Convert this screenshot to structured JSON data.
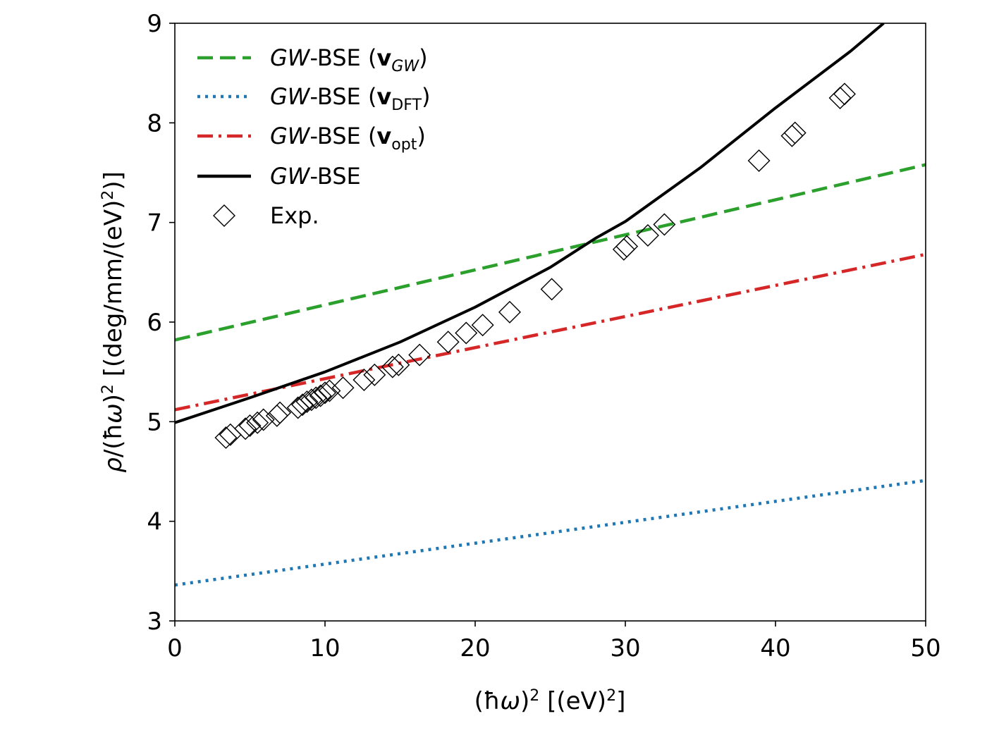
{
  "chart_data": {
    "type": "line",
    "xlabel": "(ħω)² [(eV)²]",
    "ylabel": "ρ/(ħω)² [(deg/mm/(eV)²)]",
    "xlim": [
      0,
      50
    ],
    "ylim": [
      3,
      9
    ],
    "xticks": [
      "0",
      "10",
      "20",
      "30",
      "40",
      "50"
    ],
    "yticks": [
      "3",
      "4",
      "5",
      "6",
      "7",
      "8",
      "9"
    ],
    "grid": false,
    "legend_position": "top-left",
    "series": [
      {
        "name": "GW-BSE (vGW)",
        "style": "dashed",
        "color": "#2ca02c",
        "x": [
          0,
          50
        ],
        "y": [
          5.82,
          7.58
        ]
      },
      {
        "name": "GW-BSE (vDFT)",
        "style": "dotted",
        "color": "#1f77b4",
        "x": [
          0,
          50
        ],
        "y": [
          3.36,
          4.41
        ]
      },
      {
        "name": "GW-BSE (vopt)",
        "style": "dashdot",
        "color": "#d62728",
        "x": [
          0,
          50
        ],
        "y": [
          5.12,
          6.68
        ]
      },
      {
        "name": "GW-BSE",
        "style": "solid",
        "color": "#000000",
        "x": [
          0,
          5,
          10,
          15,
          20,
          25,
          28,
          30,
          35,
          40,
          45,
          47.2
        ],
        "y": [
          4.99,
          5.24,
          5.5,
          5.8,
          6.15,
          6.55,
          6.84,
          7.01,
          7.55,
          8.15,
          8.72,
          9.0
        ]
      },
      {
        "name": "Exp.",
        "style": "marker",
        "color": "#000000",
        "x": [
          3.4,
          3.7,
          4.7,
          5.0,
          5.5,
          5.9,
          6.8,
          7.0,
          8.2,
          8.5,
          8.8,
          9.1,
          9.4,
          9.7,
          10.0,
          10.3,
          11.2,
          12.6,
          13.3,
          14.5,
          14.9,
          16.3,
          18.2,
          19.4,
          20.5,
          22.3,
          25.1,
          29.9,
          30.1,
          31.5,
          32.6,
          38.9,
          41.1,
          41.3,
          44.3,
          44.6
        ],
        "y": [
          4.84,
          4.87,
          4.93,
          4.96,
          4.99,
          5.02,
          5.06,
          5.09,
          5.14,
          5.17,
          5.2,
          5.22,
          5.24,
          5.26,
          5.29,
          5.31,
          5.34,
          5.42,
          5.47,
          5.55,
          5.57,
          5.67,
          5.8,
          5.89,
          5.97,
          6.1,
          6.33,
          6.73,
          6.76,
          6.87,
          6.98,
          7.62,
          7.87,
          7.9,
          8.25,
          8.29
        ]
      }
    ],
    "legend": [
      {
        "pre": "GW",
        "mid": "-BSE (",
        "v": "v",
        "sub": "GW",
        "sub_italic": true,
        "post": ")"
      },
      {
        "pre": "GW",
        "mid": "-BSE (",
        "v": "v",
        "sub": "DFT",
        "sub_italic": false,
        "post": ")"
      },
      {
        "pre": "GW",
        "mid": "-BSE (",
        "v": "v",
        "sub": "opt",
        "sub_italic": false,
        "post": ")"
      },
      {
        "pre": "GW",
        "mid": "-BSE",
        "v": "",
        "sub": "",
        "sub_italic": false,
        "post": ""
      },
      {
        "pre": "",
        "mid": "Exp.",
        "v": "",
        "sub": "",
        "sub_italic": false,
        "post": ""
      }
    ]
  }
}
